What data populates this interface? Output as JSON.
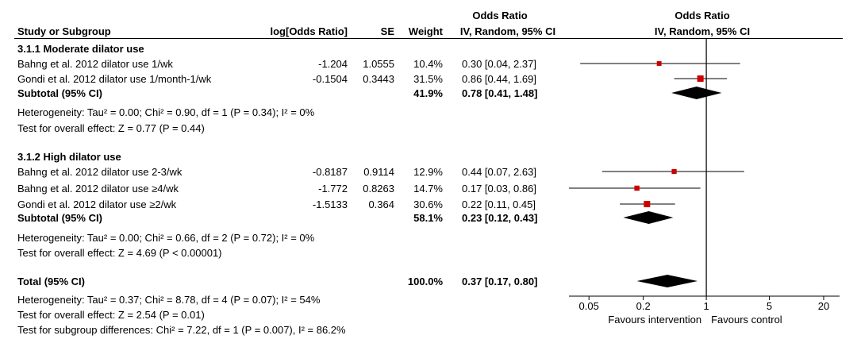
{
  "headers": {
    "study": "Study or Subgroup",
    "log_or": "log[Odds Ratio]",
    "se": "SE",
    "weight": "Weight",
    "or_group": "Odds Ratio",
    "or_method": "IV, Random, 95% CI",
    "plot_group": "Odds Ratio",
    "plot_method": "IV, Random, 95% CI"
  },
  "subgroups": [
    {
      "title": "3.1.1 Moderate dilator use",
      "studies": [
        {
          "name": "Bahng et al. 2012 dilator use 1/wk",
          "log_or": "-1.204",
          "se": "1.0555",
          "weight": "10.4%",
          "or_ci": "0.30 [0.04, 2.37]"
        },
        {
          "name": "Gondi et al. 2012 dilator use 1/month-1/wk",
          "log_or": "-0.1504",
          "se": "0.3443",
          "weight": "31.5%",
          "or_ci": "0.86 [0.44, 1.69]"
        }
      ],
      "subtotal": {
        "label": "Subtotal (95% CI)",
        "weight": "41.9%",
        "or_ci": "0.78 [0.41, 1.48]"
      },
      "heterogeneity": "Heterogeneity: Tau² = 0.00; Chi² = 0.90, df = 1 (P = 0.34); I² = 0%",
      "overall": "Test for overall effect: Z = 0.77 (P = 0.44)"
    },
    {
      "title": "3.1.2 High dilator use",
      "studies": [
        {
          "name": "Bahng et al. 2012 dilator use 2-3/wk",
          "log_or": "-0.8187",
          "se": "0.9114",
          "weight": "12.9%",
          "or_ci": "0.44 [0.07, 2.63]"
        },
        {
          "name": "Bahng et al. 2012 dilator use ≥4/wk",
          "log_or": "-1.772",
          "se": "0.8263",
          "weight": "14.7%",
          "or_ci": "0.17 [0.03, 0.86]"
        },
        {
          "name": "Gondi et al. 2012 dilator use ≥2/wk",
          "log_or": "-1.5133",
          "se": "0.364",
          "weight": "30.6%",
          "or_ci": "0.22 [0.11, 0.45]"
        }
      ],
      "subtotal": {
        "label": "Subtotal (95% CI)",
        "weight": "58.1%",
        "or_ci": "0.23 [0.12, 0.43]"
      },
      "heterogeneity": "Heterogeneity: Tau² = 0.00; Chi² = 0.66, df = 2 (P = 0.72); I² = 0%",
      "overall": "Test for overall effect: Z = 4.69 (P < 0.00001)"
    }
  ],
  "total": {
    "label": "Total (95% CI)",
    "weight": "100.0%",
    "or_ci": "0.37 [0.17, 0.80]",
    "heterogeneity": "Heterogeneity: Tau² = 0.37; Chi² = 8.78, df = 4 (P = 0.07); I² = 54%",
    "overall": "Test for overall effect: Z = 2.54 (P = 0.01)",
    "subgroup_diff": "Test for subgroup differences: Chi² = 7.22, df = 1 (P = 0.007), I² = 86.2%"
  },
  "chart_data": {
    "type": "forest",
    "scale": "log",
    "xlim": [
      0.03,
      30
    ],
    "ticks": [
      0.05,
      0.2,
      1,
      5,
      20
    ],
    "tick_labels": [
      "0.05",
      "0.2",
      "1",
      "5",
      "20"
    ],
    "null_value": 1,
    "favours_left": "Favours intervention",
    "favours_right": "Favours control",
    "colors": {
      "study_box": "#cc0000",
      "diamond": "#000000",
      "line": "#000000"
    },
    "studies": [
      {
        "or": 0.3,
        "lo": 0.04,
        "hi": 2.37,
        "weight": 10.4
      },
      {
        "or": 0.86,
        "lo": 0.44,
        "hi": 1.69,
        "weight": 31.5
      },
      {
        "or": 0.44,
        "lo": 0.07,
        "hi": 2.63,
        "weight": 12.9
      },
      {
        "or": 0.17,
        "lo": 0.03,
        "hi": 0.86,
        "weight": 14.7
      },
      {
        "or": 0.22,
        "lo": 0.11,
        "hi": 0.45,
        "weight": 30.6
      }
    ],
    "diamonds": [
      {
        "or": 0.78,
        "lo": 0.41,
        "hi": 1.48
      },
      {
        "or": 0.23,
        "lo": 0.12,
        "hi": 0.43
      },
      {
        "or": 0.37,
        "lo": 0.17,
        "hi": 0.8
      }
    ]
  }
}
